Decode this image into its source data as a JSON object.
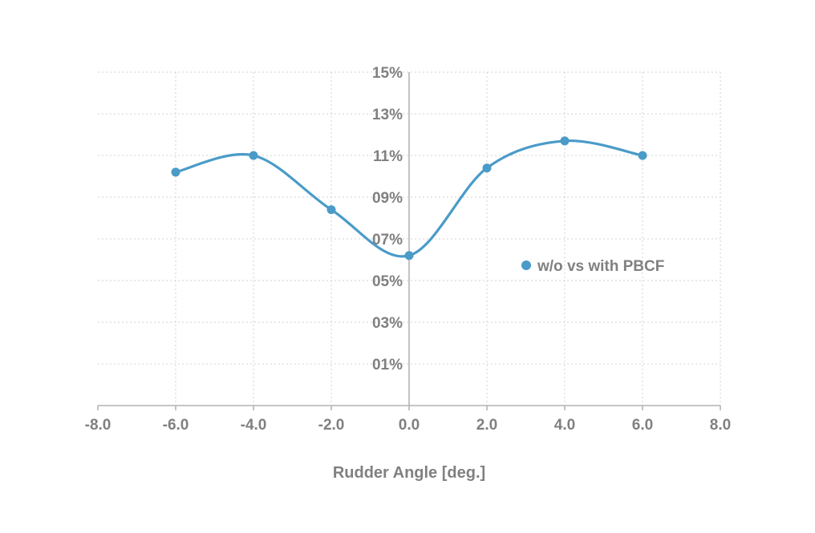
{
  "chart_data": {
    "type": "line",
    "xlabel": "Rudder Angle [deg.]",
    "ylabel": "",
    "xlim": [
      -8,
      8
    ],
    "ylim": [
      -1,
      15
    ],
    "x_ticks": [
      -8,
      -6,
      -4,
      -2,
      0,
      2,
      4,
      6,
      8
    ],
    "x_tick_labels": [
      "-8.0",
      "-6.0",
      "-4.0",
      "-2.0",
      "0.0",
      "2.0",
      "4.0",
      "6.0",
      "8.0"
    ],
    "y_ticks": [
      1,
      3,
      5,
      7,
      9,
      11,
      13,
      15
    ],
    "y_tick_labels": [
      "01%",
      "03%",
      "05%",
      "07%",
      "09%",
      "11%",
      "13%",
      "15%"
    ],
    "grid": true,
    "smooth": true,
    "legend_position": "right",
    "series": [
      {
        "name": "w/o vs with PBCF",
        "color": "#4a9bc8",
        "x": [
          -6,
          -4,
          -2,
          0,
          2,
          4,
          6
        ],
        "values": [
          10.2,
          11.0,
          8.4,
          6.2,
          10.4,
          11.7,
          11.0
        ]
      }
    ]
  }
}
